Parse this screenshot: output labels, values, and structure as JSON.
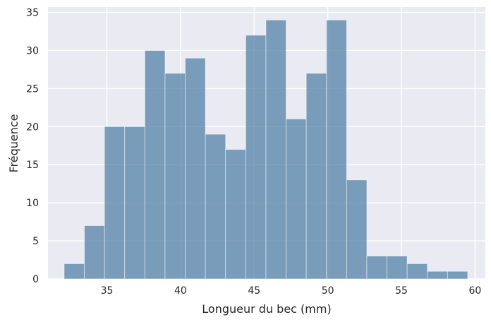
{
  "chart_data": {
    "type": "bar",
    "subtype": "histogram",
    "title": "",
    "xlabel": "Longueur du bec (mm)",
    "ylabel": "Fréquence",
    "xlim": [
      31.0,
      60.7
    ],
    "ylim": [
      0,
      35.7
    ],
    "xticks": [
      35,
      40,
      45,
      50,
      55,
      60
    ],
    "yticks": [
      0,
      5,
      10,
      15,
      20,
      25,
      30,
      35
    ],
    "grid": true,
    "legend": "none",
    "bin_start": 32.1,
    "bin_width": 1.37,
    "values": [
      2,
      7,
      20,
      20,
      30,
      27,
      29,
      19,
      17,
      32,
      34,
      21,
      27,
      34,
      13,
      3,
      3,
      2,
      1,
      1
    ],
    "colors": {
      "bar": "#4a7aa4",
      "bar_opacity": 0.7,
      "plot_background": "#eaeaf2",
      "grid": "#ffffff",
      "text": "#262626"
    }
  }
}
